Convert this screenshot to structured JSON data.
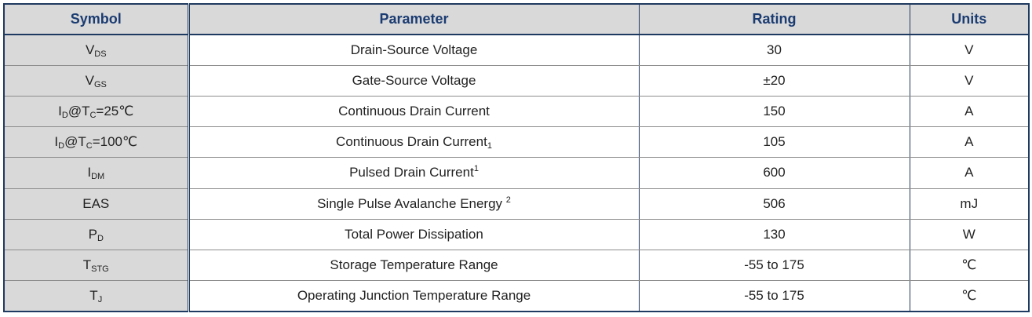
{
  "table": {
    "headers": {
      "symbol": "Symbol",
      "parameter": "Parameter",
      "rating": "Rating",
      "units": "Units"
    },
    "rows": [
      {
        "symbol": {
          "main": "V",
          "sub": "DS",
          "tail": ""
        },
        "parameter": {
          "text": "Drain-Source Voltage",
          "sub": "",
          "sup": ""
        },
        "rating": "30",
        "units": "V"
      },
      {
        "symbol": {
          "main": "V",
          "sub": "GS",
          "tail": ""
        },
        "parameter": {
          "text": "Gate-Source Voltage",
          "sub": "",
          "sup": ""
        },
        "rating": "±20",
        "units": "V"
      },
      {
        "symbol": {
          "main": "I",
          "sub": "D",
          "mid": "@T",
          "sub2": "C",
          "tail": "=25℃"
        },
        "parameter": {
          "text": "Continuous Drain Current",
          "sub": "",
          "sup": ""
        },
        "rating": "150",
        "units": "A"
      },
      {
        "symbol": {
          "main": "I",
          "sub": "D",
          "mid": "@T",
          "sub2": "C",
          "tail": "=100℃"
        },
        "parameter": {
          "text": "Continuous Drain Current",
          "sub": "1",
          "sup": ""
        },
        "rating": "105",
        "units": "A"
      },
      {
        "symbol": {
          "main": "I",
          "sub": "DM",
          "tail": ""
        },
        "parameter": {
          "text": "Pulsed Drain Current",
          "sub": "",
          "sup": "1"
        },
        "rating": "600",
        "units": "A"
      },
      {
        "symbol": {
          "main": "EAS",
          "sub": "",
          "tail": ""
        },
        "parameter": {
          "text": "Single Pulse Avalanche Energy ",
          "sub": "",
          "sup": "2"
        },
        "rating": "506",
        "units": "mJ"
      },
      {
        "symbol": {
          "main": "P",
          "sub": "D",
          "tail": ""
        },
        "parameter": {
          "text": "Total Power Dissipation",
          "sub": "",
          "sup": ""
        },
        "rating": "130",
        "units": "W"
      },
      {
        "symbol": {
          "main": "T",
          "sub": "STG",
          "tail": ""
        },
        "parameter": {
          "text": "Storage Temperature Range",
          "sub": "",
          "sup": ""
        },
        "rating": "-55 to 175",
        "units": "℃"
      },
      {
        "symbol": {
          "main": "T",
          "sub": "J",
          "tail": ""
        },
        "parameter": {
          "text": "Operating Junction Temperature Range",
          "sub": "",
          "sup": ""
        },
        "rating": "-55 to 175",
        "units": "℃"
      }
    ]
  }
}
